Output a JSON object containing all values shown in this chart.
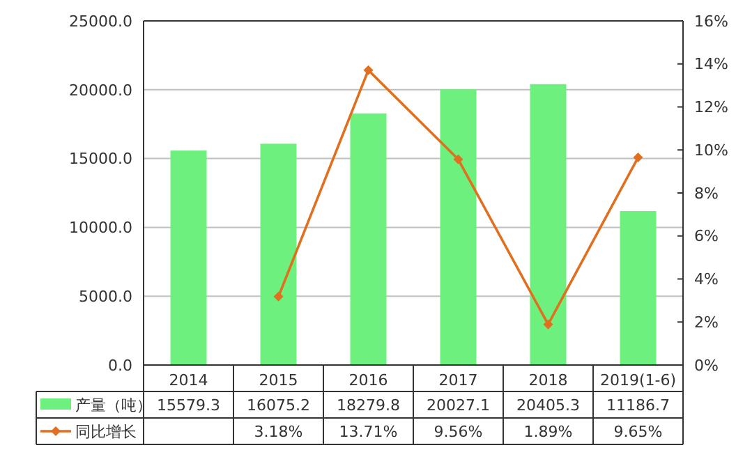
{
  "chart_data": {
    "type": "bar",
    "categories": [
      "2014",
      "2015",
      "2016",
      "2017",
      "2018",
      "2019(1-6)"
    ],
    "series": [
      {
        "name": "产量（吨）",
        "color": "#6ef07e",
        "values": [
          15579.3,
          16075.2,
          18279.8,
          20027.1,
          20405.3,
          11186.7
        ],
        "value_labels": [
          "15579.3",
          "16075.2",
          "18279.8",
          "20027.1",
          "20405.3",
          "11186.7"
        ]
      },
      {
        "name": "同比增长",
        "type": "line",
        "axis": "y2",
        "color": "#e07020",
        "marker": "diamond",
        "values": [
          null,
          3.18,
          13.71,
          9.56,
          1.89,
          9.65
        ],
        "value_labels": [
          null,
          "3.18%",
          "13.71%",
          "9.56%",
          "1.89%",
          "9.65%"
        ]
      }
    ],
    "ylim": [
      0,
      25000
    ],
    "yticks": [
      {
        "value": 0,
        "label": "0.0"
      },
      {
        "value": 5000,
        "label": "5000.0"
      },
      {
        "value": 10000,
        "label": "10000.0"
      },
      {
        "value": 15000,
        "label": "15000.0"
      },
      {
        "value": 20000,
        "label": "20000.0"
      },
      {
        "value": 25000,
        "label": "25000.0"
      }
    ],
    "y2lim": [
      0,
      16
    ],
    "y2ticks": [
      {
        "value": 0,
        "label": "0%"
      },
      {
        "value": 2,
        "label": "2%"
      },
      {
        "value": 4,
        "label": "4%"
      },
      {
        "value": 6,
        "label": "6%"
      },
      {
        "value": 8,
        "label": "8%"
      },
      {
        "value": 10,
        "label": "10%"
      },
      {
        "value": 12,
        "label": "12%"
      },
      {
        "value": 14,
        "label": "14%"
      },
      {
        "value": 16,
        "label": "16%"
      }
    ],
    "grid": "y",
    "legend": "bottom"
  }
}
